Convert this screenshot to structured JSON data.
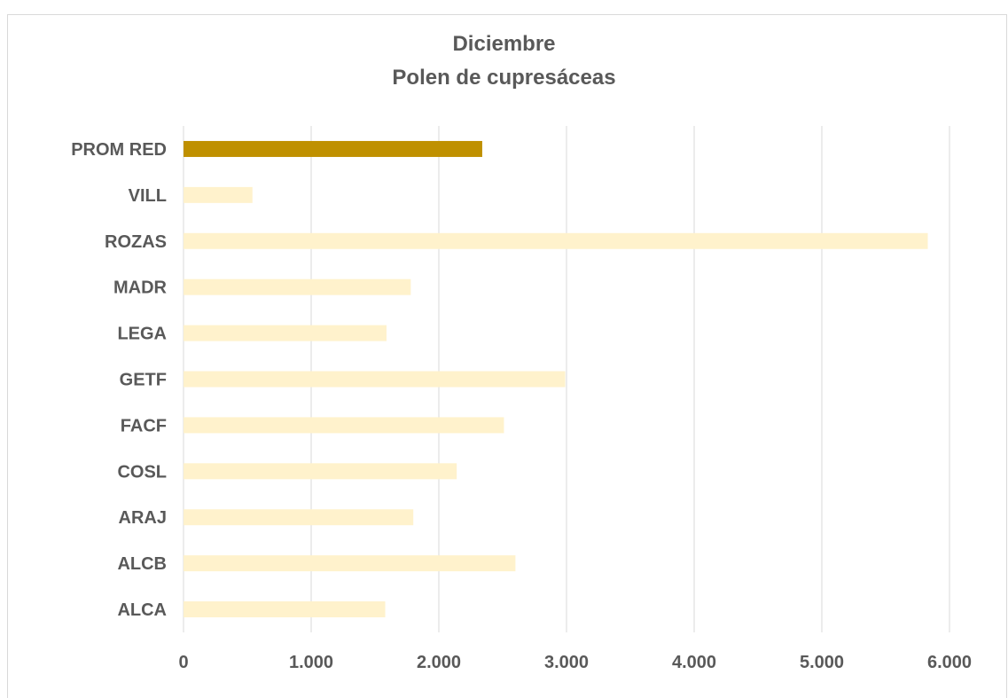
{
  "chart_data": {
    "type": "bar",
    "orientation": "horizontal",
    "title": "Diciembre",
    "subtitle": "Polen de cupresáceas",
    "categories": [
      "ALCA",
      "ALCB",
      "ARAJ",
      "COSL",
      "FACF",
      "GETF",
      "LEGA",
      "MADR",
      "ROZAS",
      "VILL",
      "PROM RED"
    ],
    "values": [
      1580,
      2600,
      1800,
      2140,
      2510,
      2990,
      1590,
      1780,
      5830,
      540,
      2340
    ],
    "colors": [
      "#fff2cc",
      "#fff2cc",
      "#fff2cc",
      "#fff2cc",
      "#fff2cc",
      "#fff2cc",
      "#fff2cc",
      "#fff2cc",
      "#fff2cc",
      "#fff2cc",
      "#bf9000"
    ],
    "xlim": [
      0,
      6000
    ],
    "xticks": [
      0,
      1000,
      2000,
      3000,
      4000,
      5000,
      6000
    ],
    "xtick_labels": [
      "0",
      "1.000",
      "2.000",
      "3.000",
      "4.000",
      "5.000",
      "6.000"
    ],
    "grid": "vertical",
    "legend": "none"
  }
}
